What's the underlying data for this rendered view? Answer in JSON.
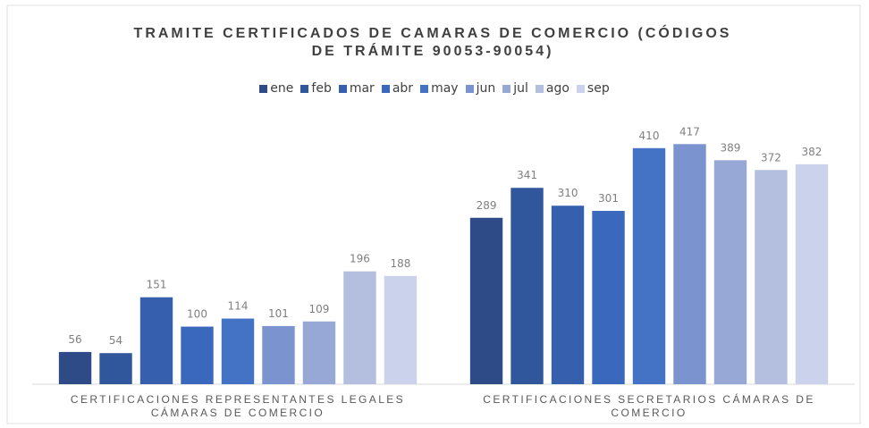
{
  "chart_data": {
    "type": "bar",
    "title": "TRAMITE CERTIFICADOS DE CAMARAS DE COMERCIO (CÓDIGOS DE TRÁMITE 90053-90054)",
    "categories": [
      "CERTIFICACIONES REPRESENTANTES LEGALES CÁMARAS DE COMERCIO",
      "CERTIFICACIONES SECRETARIOS CÁMARAS DE COMERCIO"
    ],
    "series": [
      {
        "name": "ene",
        "color": "#2e4a87",
        "values": [
          56,
          289
        ]
      },
      {
        "name": "feb",
        "color": "#30569b",
        "values": [
          54,
          341
        ]
      },
      {
        "name": "mar",
        "color": "#3660ad",
        "values": [
          151,
          310
        ]
      },
      {
        "name": "abr",
        "color": "#3a68bc",
        "values": [
          100,
          301
        ]
      },
      {
        "name": "may",
        "color": "#4472c4",
        "values": [
          114,
          410
        ]
      },
      {
        "name": "jun",
        "color": "#7b93cf",
        "values": [
          101,
          417
        ]
      },
      {
        "name": "jul",
        "color": "#97a8d6",
        "values": [
          109,
          389
        ]
      },
      {
        "name": "ago",
        "color": "#b4bfe0",
        "values": [
          196,
          372
        ]
      },
      {
        "name": "sep",
        "color": "#cbd2eb",
        "values": [
          188,
          382
        ]
      }
    ],
    "ylim": [
      0,
      450
    ],
    "legend": "top"
  }
}
